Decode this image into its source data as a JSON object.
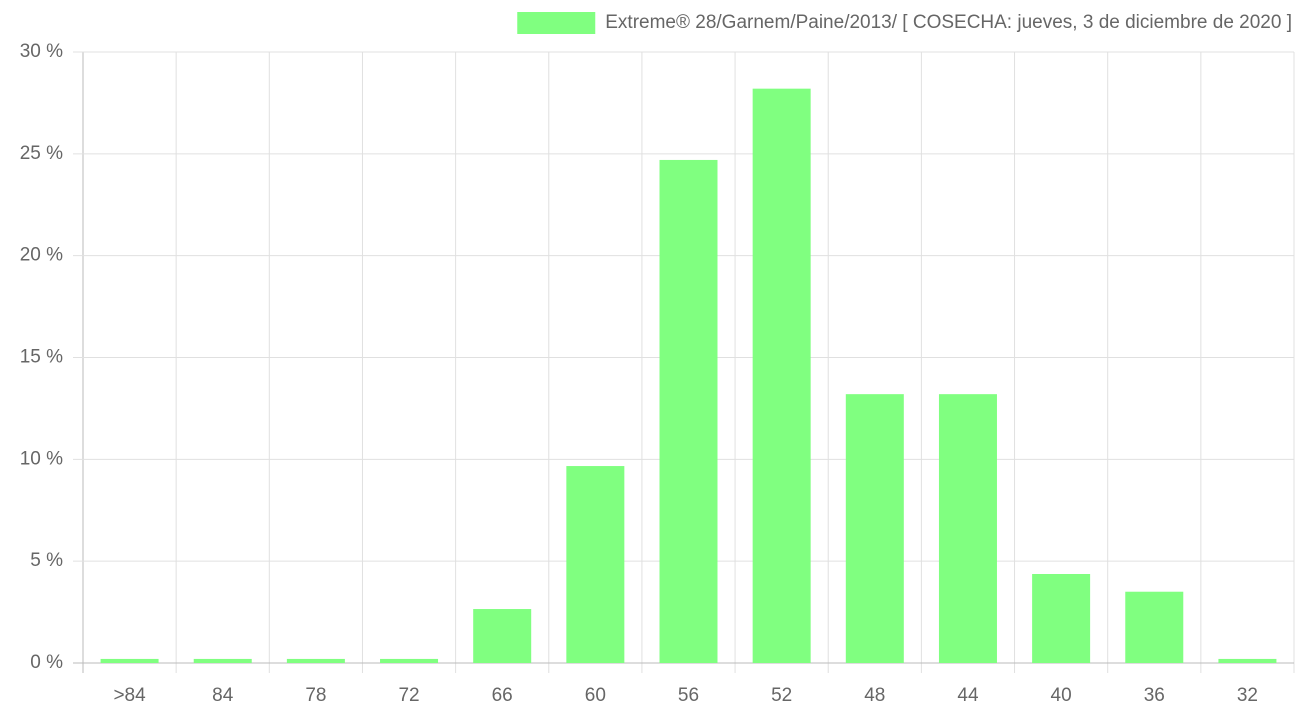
{
  "chart_data": {
    "type": "bar",
    "categories": [
      ">84",
      "84",
      "78",
      "72",
      "66",
      "60",
      "56",
      "52",
      "48",
      "44",
      "40",
      "36",
      "32"
    ],
    "series": [
      {
        "name": "Extreme® 28/Garnem/Paine/2013/ [ COSECHA: jueves, 3 de diciembre de 2020 ]",
        "color": "#80ff80",
        "values": [
          0.2,
          0.2,
          0.2,
          0.2,
          2.65,
          9.67,
          24.7,
          28.2,
          13.2,
          13.2,
          4.37,
          3.5,
          0.2
        ]
      }
    ],
    "ylim": [
      0,
      30
    ],
    "yticks": [
      {
        "value": 0,
        "label": "0 %"
      },
      {
        "value": 5,
        "label": "5 %"
      },
      {
        "value": 10,
        "label": "10 %"
      },
      {
        "value": 15,
        "label": "15 %"
      },
      {
        "value": 20,
        "label": "20 %"
      },
      {
        "value": 25,
        "label": "25 %"
      },
      {
        "value": 30,
        "label": "30 %"
      }
    ],
    "grid": true,
    "legend": "top"
  }
}
